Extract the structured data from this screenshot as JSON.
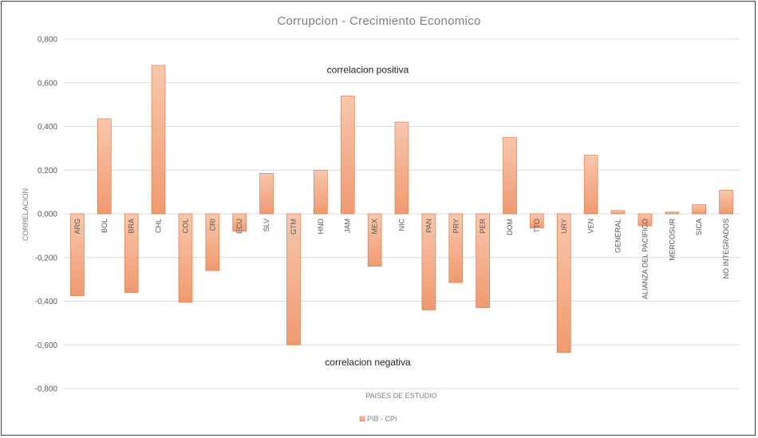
{
  "chart_data": {
    "type": "bar",
    "title": "Corrupcion  - Crecimiento  Economico",
    "xlabel": "PAISES DE ESTUDIO",
    "ylabel": "CORRELACION",
    "ylim": [
      -0.8,
      0.8
    ],
    "yticks": [
      "0,800",
      "0,600",
      "0,400",
      "0,200",
      "0,000",
      "-0,200",
      "-0,400",
      "-0,600",
      "-0,800"
    ],
    "ytick_values": [
      0.8,
      0.6,
      0.4,
      0.2,
      0.0,
      -0.2,
      -0.4,
      -0.6,
      -0.8
    ],
    "grid": true,
    "legend_position": "bottom",
    "categories": [
      "ARG",
      "BOL",
      "BRA",
      "CHL",
      "COL",
      "CRI",
      "ECU",
      "SLV",
      "GTM",
      "HND",
      "JAM",
      "MEX",
      "NIC",
      "PAN",
      "PRY",
      "PER",
      "DOM",
      "TTO",
      "URY",
      "VEN",
      "GENERAL",
      "ALIANZA DEL PACIFICO",
      "MERCOSUR",
      "SICA",
      "NO INTEGRADOS"
    ],
    "series": [
      {
        "name": "PIB - CPI",
        "color": "#f4a582",
        "values": [
          -0.375,
          0.435,
          -0.36,
          0.68,
          -0.405,
          -0.26,
          -0.08,
          0.185,
          -0.6,
          0.2,
          0.54,
          -0.24,
          0.42,
          -0.44,
          -0.315,
          -0.43,
          0.35,
          -0.065,
          -0.635,
          0.268,
          0.015,
          -0.055,
          0.008,
          0.042,
          0.108
        ]
      }
    ],
    "annotations": [
      {
        "text": "correlacion positiva",
        "y": 0.66
      },
      {
        "text": "correlacion negativa",
        "y": -0.68
      }
    ]
  }
}
